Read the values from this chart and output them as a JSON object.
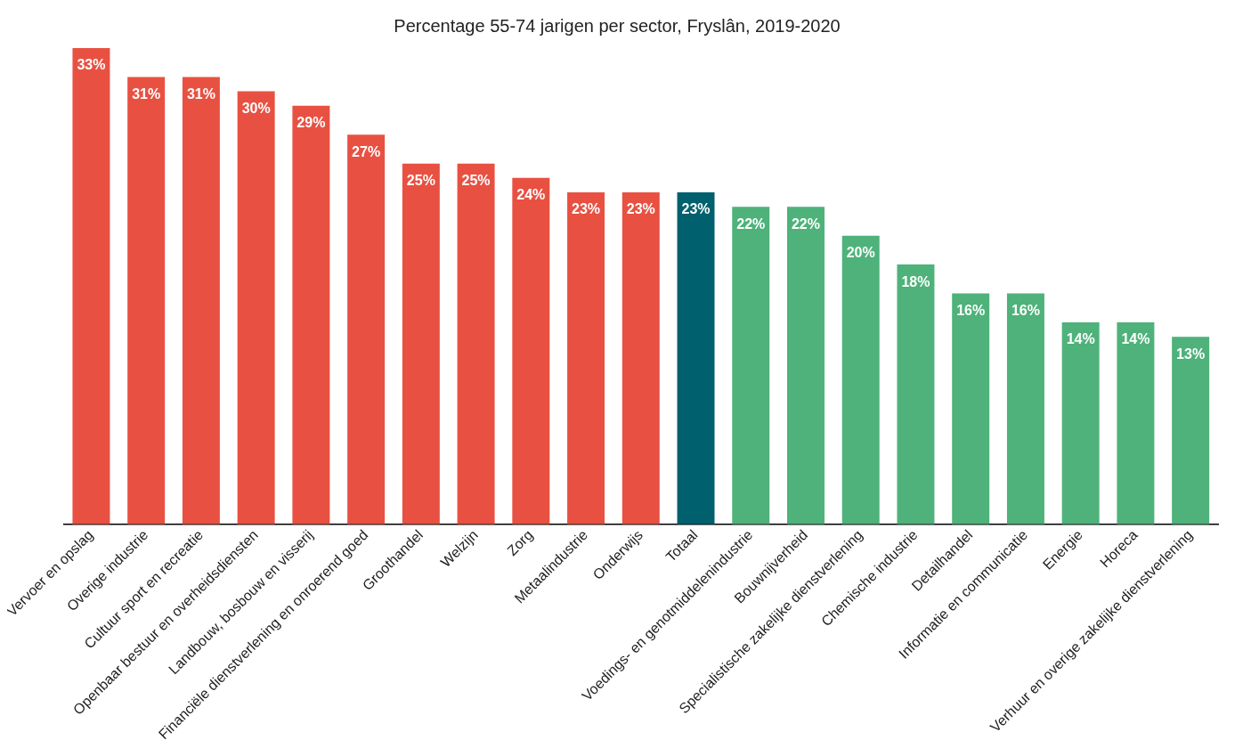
{
  "chart_data": {
    "type": "bar",
    "title": "Percentage 55-74 jarigen per sector, Fryslân, 2019-2020",
    "categories": [
      "Vervoer en opslag",
      "Overige industrie",
      "Cultuur sport en recreatie",
      "Openbaar bestuur en overheidsdiensten",
      "Landbouw, bosbouw en visserij",
      "Financiële dienstverlening en onroerend goed",
      "Groothandel",
      "Welzijn",
      "Zorg",
      "Metaalindustrie",
      "Onderwijs",
      "Totaal",
      "Voedings- en genotmiddelenindustrie",
      "Bouwnijverheid",
      "Specialistische zakelijke dienstverlening",
      "Chemische industrie",
      "Detailhandel",
      "Informatie en communicatie",
      "Energie",
      "Horeca",
      "Verhuur en overige zakelijke dienstverlening"
    ],
    "values": [
      33,
      31,
      31,
      30,
      29,
      27,
      25,
      25,
      24,
      23,
      23,
      23,
      22,
      22,
      20,
      18,
      16,
      16,
      14,
      14,
      13
    ],
    "value_labels": [
      "33%",
      "31%",
      "31%",
      "30%",
      "29%",
      "27%",
      "25%",
      "25%",
      "24%",
      "23%",
      "23%",
      "23%",
      "22%",
      "22%",
      "20%",
      "18%",
      "16%",
      "16%",
      "14%",
      "14%",
      "13%"
    ],
    "colors": [
      "#e85142",
      "#e85142",
      "#e85142",
      "#e85142",
      "#e85142",
      "#e85142",
      "#e85142",
      "#e85142",
      "#e85142",
      "#e85142",
      "#e85142",
      "#00606e",
      "#4eb27a",
      "#4eb27a",
      "#4eb27a",
      "#4eb27a",
      "#4eb27a",
      "#4eb27a",
      "#4eb27a",
      "#4eb27a",
      "#4eb27a"
    ],
    "ylim": [
      0,
      33
    ],
    "tick_labels": "x",
    "grid": false,
    "legend": false
  }
}
